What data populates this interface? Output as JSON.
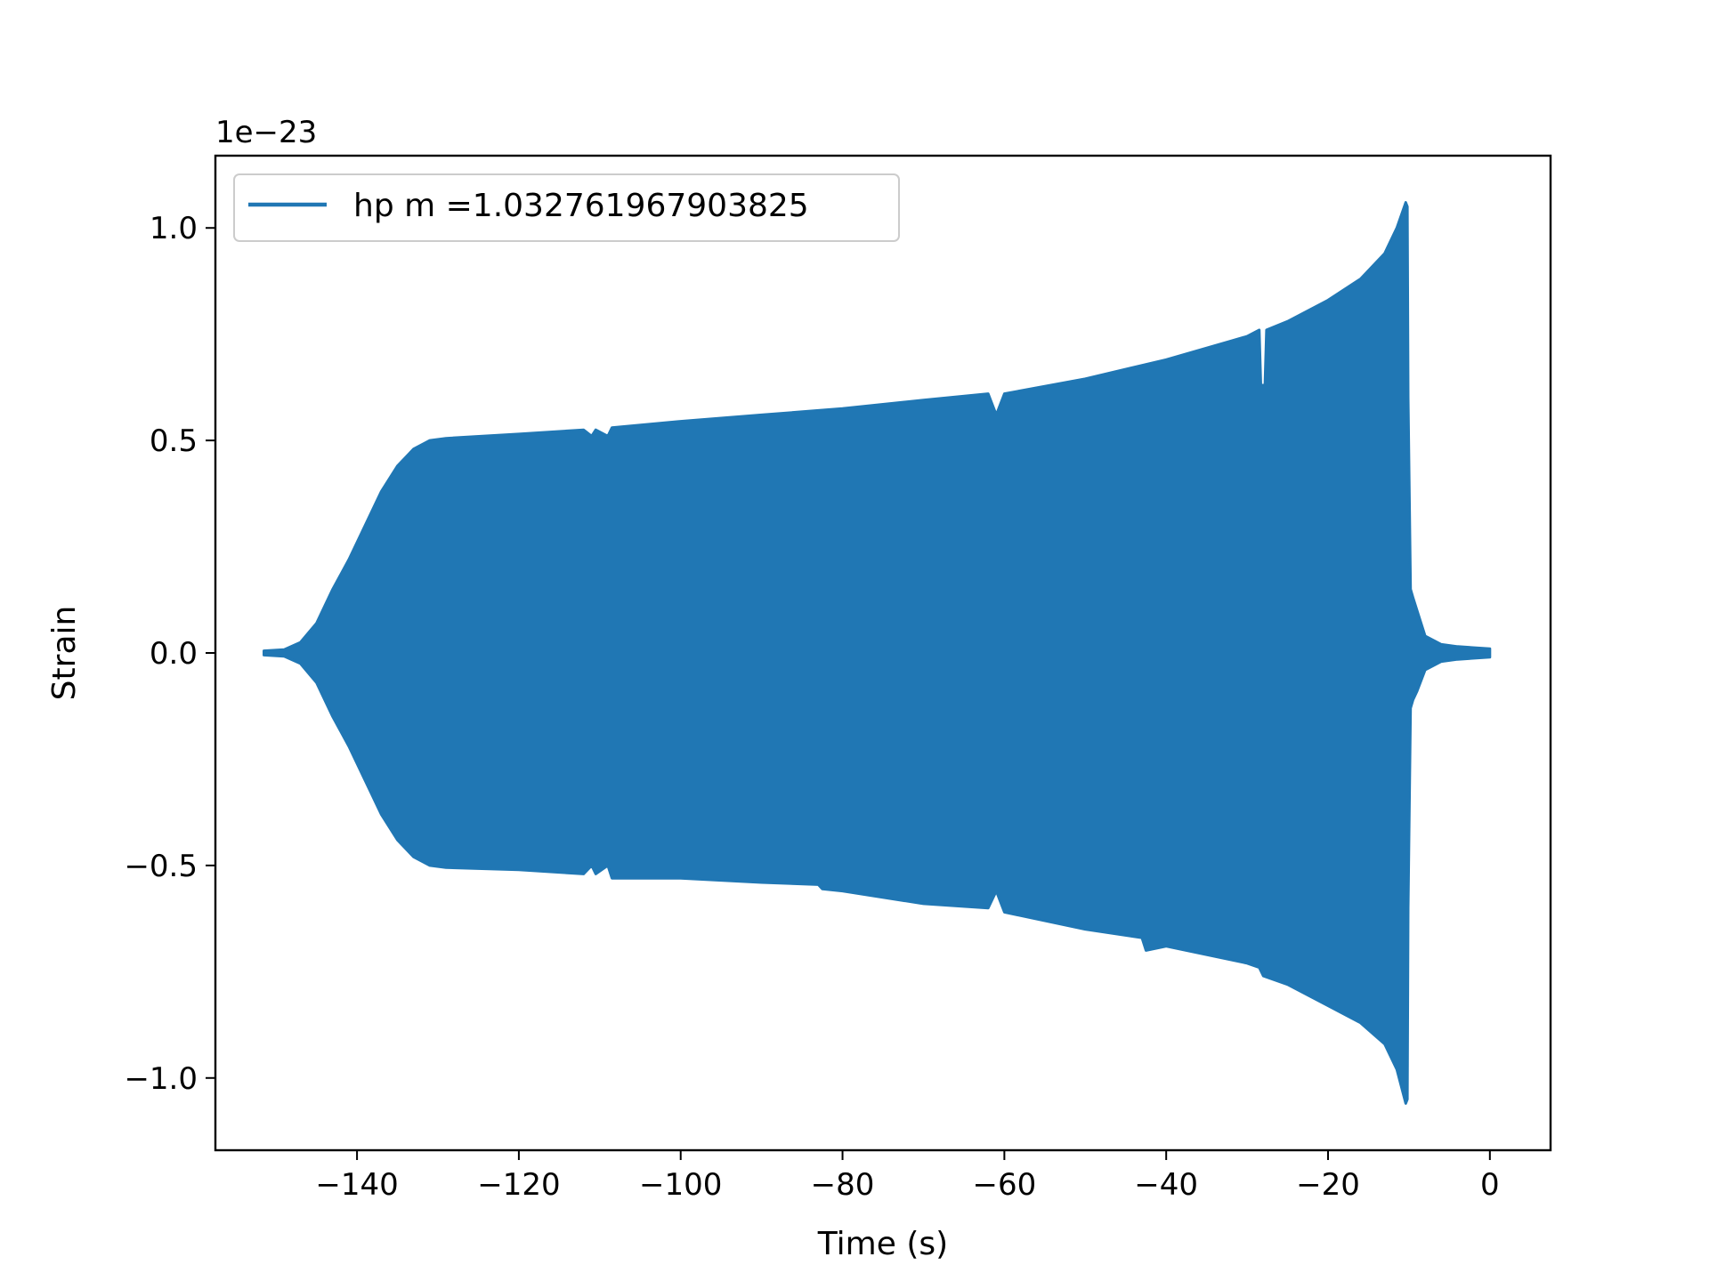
{
  "chart_data": {
    "type": "line",
    "title": "",
    "xlabel": "Time (s)",
    "ylabel": "Strain",
    "y_offset_label": "1e−23",
    "xlim": [
      -157.5,
      7.5
    ],
    "ylim": [
      -1.17,
      1.17
    ],
    "x_ticks": [
      {
        "value": -140,
        "label": "−140"
      },
      {
        "value": -120,
        "label": "−120"
      },
      {
        "value": -100,
        "label": "−100"
      },
      {
        "value": -80,
        "label": "−80"
      },
      {
        "value": -60,
        "label": "−60"
      },
      {
        "value": -40,
        "label": "−40"
      },
      {
        "value": -20,
        "label": "−20"
      },
      {
        "value": 0,
        "label": "0"
      }
    ],
    "y_ticks": [
      {
        "value": 1.0,
        "label": "1.0"
      },
      {
        "value": 0.5,
        "label": "0.5"
      },
      {
        "value": 0.0,
        "label": "0.0"
      },
      {
        "value": -0.5,
        "label": "−0.5"
      },
      {
        "value": -1.0,
        "label": "−1.0"
      }
    ],
    "grid": false,
    "legend_position": "top-left",
    "series": [
      {
        "name": "hp m =1.032761967903825",
        "color": "#2077b4",
        "envelope_upper": [
          [
            -151.5,
            0.005
          ],
          [
            -149,
            0.008
          ],
          [
            -147,
            0.025
          ],
          [
            -145,
            0.07
          ],
          [
            -143,
            0.15
          ],
          [
            -141,
            0.22
          ],
          [
            -139,
            0.3
          ],
          [
            -137,
            0.38
          ],
          [
            -135,
            0.44
          ],
          [
            -133,
            0.48
          ],
          [
            -131,
            0.5
          ],
          [
            -129,
            0.505
          ],
          [
            -120,
            0.515
          ],
          [
            -112,
            0.525
          ],
          [
            -111,
            0.51
          ],
          [
            -110.5,
            0.525
          ],
          [
            -109,
            0.51
          ],
          [
            -108.5,
            0.53
          ],
          [
            -100,
            0.545
          ],
          [
            -90,
            0.56
          ],
          [
            -80,
            0.575
          ],
          [
            -70,
            0.595
          ],
          [
            -62,
            0.61
          ],
          [
            -61,
            0.56
          ],
          [
            -60,
            0.61
          ],
          [
            -50,
            0.645
          ],
          [
            -40,
            0.69
          ],
          [
            -30,
            0.745
          ],
          [
            -28.5,
            0.76
          ],
          [
            -28.3,
            0.63
          ],
          [
            -27.8,
            0.63
          ],
          [
            -27.6,
            0.76
          ],
          [
            -25,
            0.78
          ],
          [
            -20,
            0.83
          ],
          [
            -16,
            0.88
          ],
          [
            -13,
            0.94
          ],
          [
            -11.5,
            1.0
          ],
          [
            -10.4,
            1.06
          ],
          [
            -10.2,
            1.05
          ],
          [
            -10.1,
            0.6
          ],
          [
            -9.8,
            0.15
          ],
          [
            -9.5,
            0.13
          ],
          [
            -9,
            0.1
          ],
          [
            -8,
            0.04
          ],
          [
            -6,
            0.02
          ],
          [
            -4,
            0.015
          ],
          [
            0,
            0.01
          ]
        ],
        "envelope_lower": [
          [
            -151.5,
            -0.005
          ],
          [
            -149,
            -0.008
          ],
          [
            -147,
            -0.025
          ],
          [
            -145,
            -0.07
          ],
          [
            -143,
            -0.15
          ],
          [
            -141,
            -0.22
          ],
          [
            -139,
            -0.3
          ],
          [
            -137,
            -0.38
          ],
          [
            -135,
            -0.44
          ],
          [
            -133,
            -0.48
          ],
          [
            -131,
            -0.5
          ],
          [
            -129,
            -0.505
          ],
          [
            -120,
            -0.51
          ],
          [
            -112,
            -0.52
          ],
          [
            -111,
            -0.5
          ],
          [
            -110.5,
            -0.52
          ],
          [
            -109,
            -0.5
          ],
          [
            -108.5,
            -0.53
          ],
          [
            -100,
            -0.53
          ],
          [
            -90,
            -0.54
          ],
          [
            -83,
            -0.545
          ],
          [
            -82.5,
            -0.555
          ],
          [
            -80,
            -0.56
          ],
          [
            -70,
            -0.59
          ],
          [
            -62,
            -0.6
          ],
          [
            -61,
            -0.56
          ],
          [
            -60,
            -0.61
          ],
          [
            -50,
            -0.65
          ],
          [
            -43,
            -0.67
          ],
          [
            -42.5,
            -0.7
          ],
          [
            -40,
            -0.69
          ],
          [
            -30,
            -0.73
          ],
          [
            -28.5,
            -0.74
          ],
          [
            -28,
            -0.76
          ],
          [
            -25,
            -0.78
          ],
          [
            -20,
            -0.83
          ],
          [
            -16,
            -0.87
          ],
          [
            -13,
            -0.92
          ],
          [
            -11.5,
            -0.98
          ],
          [
            -10.4,
            -1.06
          ],
          [
            -10.2,
            -1.05
          ],
          [
            -10.1,
            -0.6
          ],
          [
            -9.8,
            -0.13
          ],
          [
            -9.5,
            -0.11
          ],
          [
            -9,
            -0.09
          ],
          [
            -8,
            -0.04
          ],
          [
            -6,
            -0.02
          ],
          [
            -4,
            -0.015
          ],
          [
            0,
            -0.01
          ]
        ]
      }
    ]
  }
}
